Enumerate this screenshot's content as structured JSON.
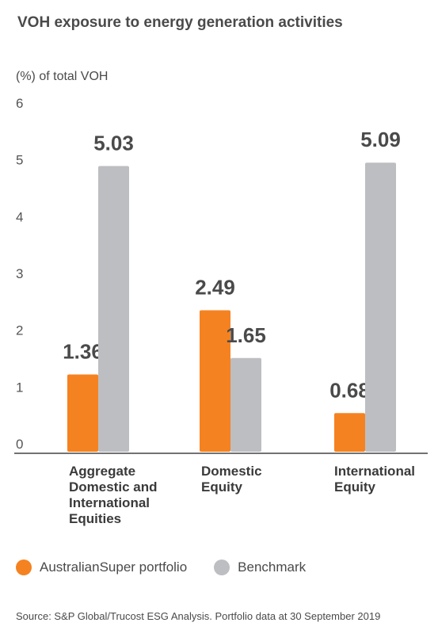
{
  "colors": {
    "portfolio": "#f58220",
    "benchmark": "#bdbec2",
    "axis": "#444444"
  },
  "chart_data": {
    "type": "bar",
    "title": "VOH exposure to energy generation activities",
    "ylabel": "(%) of total VOH",
    "xlabel": "",
    "ylim": [
      0,
      6
    ],
    "yticks": [
      0,
      1,
      2,
      3,
      4,
      5,
      6
    ],
    "grid": false,
    "legend_position": "bottom",
    "categories": [
      [
        "Aggregate",
        "Domestic and",
        "International",
        "Equities"
      ],
      [
        "Domestic",
        "Equity"
      ],
      [
        "International",
        "Equity"
      ]
    ],
    "series": [
      {
        "name": "AustralianSuper portfolio",
        "values": [
          1.36,
          2.49,
          0.68
        ],
        "labels": [
          "1.36",
          "2.49",
          "0.68"
        ]
      },
      {
        "name": "Benchmark",
        "values": [
          5.03,
          1.65,
          5.09
        ],
        "labels": [
          "5.03",
          "1.65",
          "5.09"
        ]
      }
    ]
  },
  "source": "Source: S&P Global/Trucost ESG Analysis. Portfolio data at 30 September 2019"
}
